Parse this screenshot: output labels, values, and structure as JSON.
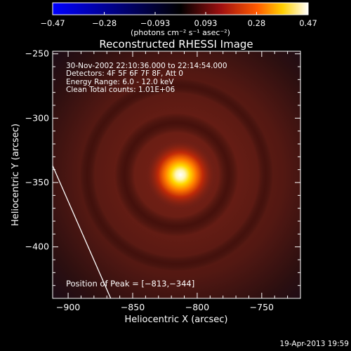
{
  "colorbar": {
    "min_label": "−0.47",
    "tick_labels": [
      "−0.47",
      "−0.28",
      "−0.093",
      "0.093",
      "0.28",
      "0.47"
    ],
    "tick_values": [
      -0.47,
      -0.28,
      -0.093,
      0.093,
      0.28,
      0.47
    ],
    "units_label": "(photons cm⁻² s⁻¹ asec⁻²)",
    "colors": [
      "#0000ff",
      "#000000",
      "#c01010",
      "#ff6a00",
      "#ffd800",
      "#ffffff"
    ]
  },
  "chart_data": {
    "type": "heatmap",
    "title": "Reconstructed RHESSI Image",
    "xlabel": "Heliocentric X (arcsec)",
    "ylabel": "Heliocentric Y (arcsec)",
    "xlim": [
      -912,
      -720
    ],
    "ylim": [
      -440,
      -248
    ],
    "x_ticks": [
      -900,
      -850,
      -800,
      -750
    ],
    "y_ticks": [
      -250,
      -300,
      -350,
      -400
    ],
    "x_tick_labels": [
      "−900",
      "−850",
      "−800",
      "−750"
    ],
    "y_tick_labels": [
      "−250",
      "−300",
      "−350",
      "−400"
    ],
    "peak": {
      "x": -813,
      "y": -344
    },
    "annotations": [
      "30-Nov-2002 22:10:36.000 to 22:14:54.000",
      "Detectors: 4F 5F 6F 7F 8F, Att 0",
      "Energy Range: 6.0 - 12.0 keV",
      "Clean    Total counts: 1.01E+06"
    ],
    "peak_label": "Position of Peak = [−813,−344]",
    "limb_line": [
      [
        -912,
        -337
      ],
      [
        -867,
        -440
      ]
    ],
    "value_range": [
      -0.47,
      0.47
    ]
  },
  "footer": {
    "date": "19-Apr-2013 19:59"
  }
}
